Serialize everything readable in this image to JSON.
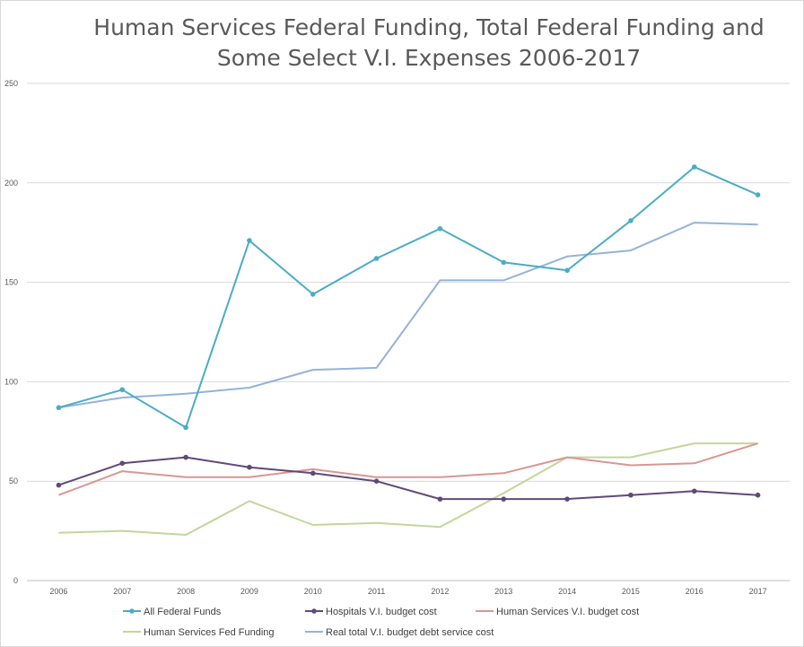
{
  "chart_data": {
    "type": "line",
    "title_lines": [
      "Human Services Federal Funding, Total Federal Funding and",
      "Some Select V.I. Expenses 2006-2017"
    ],
    "categories": [
      "2006",
      "2007",
      "2008",
      "2009",
      "2010",
      "2011",
      "2012",
      "2013",
      "2014",
      "2015",
      "2016",
      "2017"
    ],
    "ylim": [
      0,
      250
    ],
    "yticks": [
      0,
      50,
      100,
      150,
      200,
      250
    ],
    "grid": true,
    "legend_position": "bottom",
    "series": [
      {
        "name": "All Federal Funds",
        "color": "#4bacc6",
        "markers": true,
        "values": [
          87,
          96,
          77,
          171,
          144,
          162,
          177,
          160,
          156,
          181,
          208,
          194
        ]
      },
      {
        "name": "Hospitals V.I. budget cost",
        "color": "#60497a",
        "markers": true,
        "values": [
          48,
          59,
          62,
          57,
          54,
          50,
          41,
          41,
          41,
          43,
          45,
          43
        ]
      },
      {
        "name": "Human Services V.I. budget cost",
        "color": "#d99694",
        "markers": false,
        "values": [
          43,
          55,
          52,
          52,
          56,
          52,
          52,
          54,
          62,
          58,
          59,
          69
        ]
      },
      {
        "name": "Human Services Fed Funding",
        "color": "#c3d69b",
        "markers": false,
        "values": [
          24,
          25,
          23,
          40,
          28,
          29,
          27,
          44,
          62,
          62,
          69,
          69
        ]
      },
      {
        "name": "Real total V.I. budget debt service cost",
        "color": "#95b3d7",
        "markers": false,
        "values": [
          87,
          92,
          94,
          97,
          106,
          107,
          151,
          151,
          163,
          166,
          180,
          179
        ]
      }
    ]
  }
}
